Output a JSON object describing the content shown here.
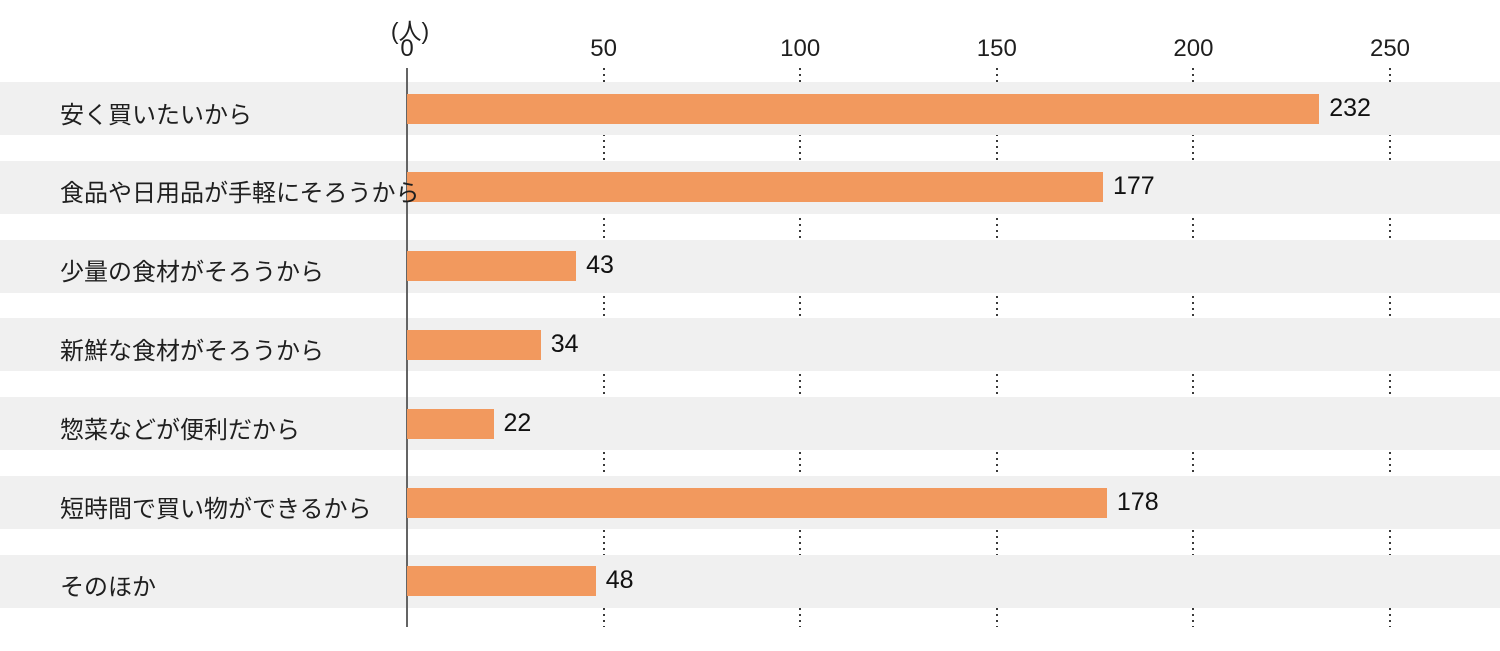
{
  "chart_data": {
    "type": "bar",
    "orientation": "horizontal",
    "title": "",
    "unit_label": "(人)",
    "xlabel": "",
    "ylabel": "",
    "categories": [
      "安く買いたいから",
      "食品や日用品が手軽にそろうから",
      "少量の食材がそろうから",
      "新鮮な食材がそろうから",
      "惣菜などが便利だから",
      "短時間で買い物ができるから",
      "そのほか"
    ],
    "values": [
      232,
      177,
      43,
      34,
      22,
      178,
      48
    ],
    "x_ticks": [
      0,
      50,
      100,
      150,
      200,
      250
    ],
    "xlim": [
      0,
      278
    ],
    "grid": "dotted-vertical-lines-at-ticks",
    "legend_position": "none",
    "row_striping": "light-gray-bands-behind-each-category",
    "colors": {
      "bar": "#f2995e",
      "row_band": "#f0f0f0",
      "axis_line": "#646464",
      "grid_dots": "#3a3a3a",
      "text": "#1f1f1f"
    }
  }
}
